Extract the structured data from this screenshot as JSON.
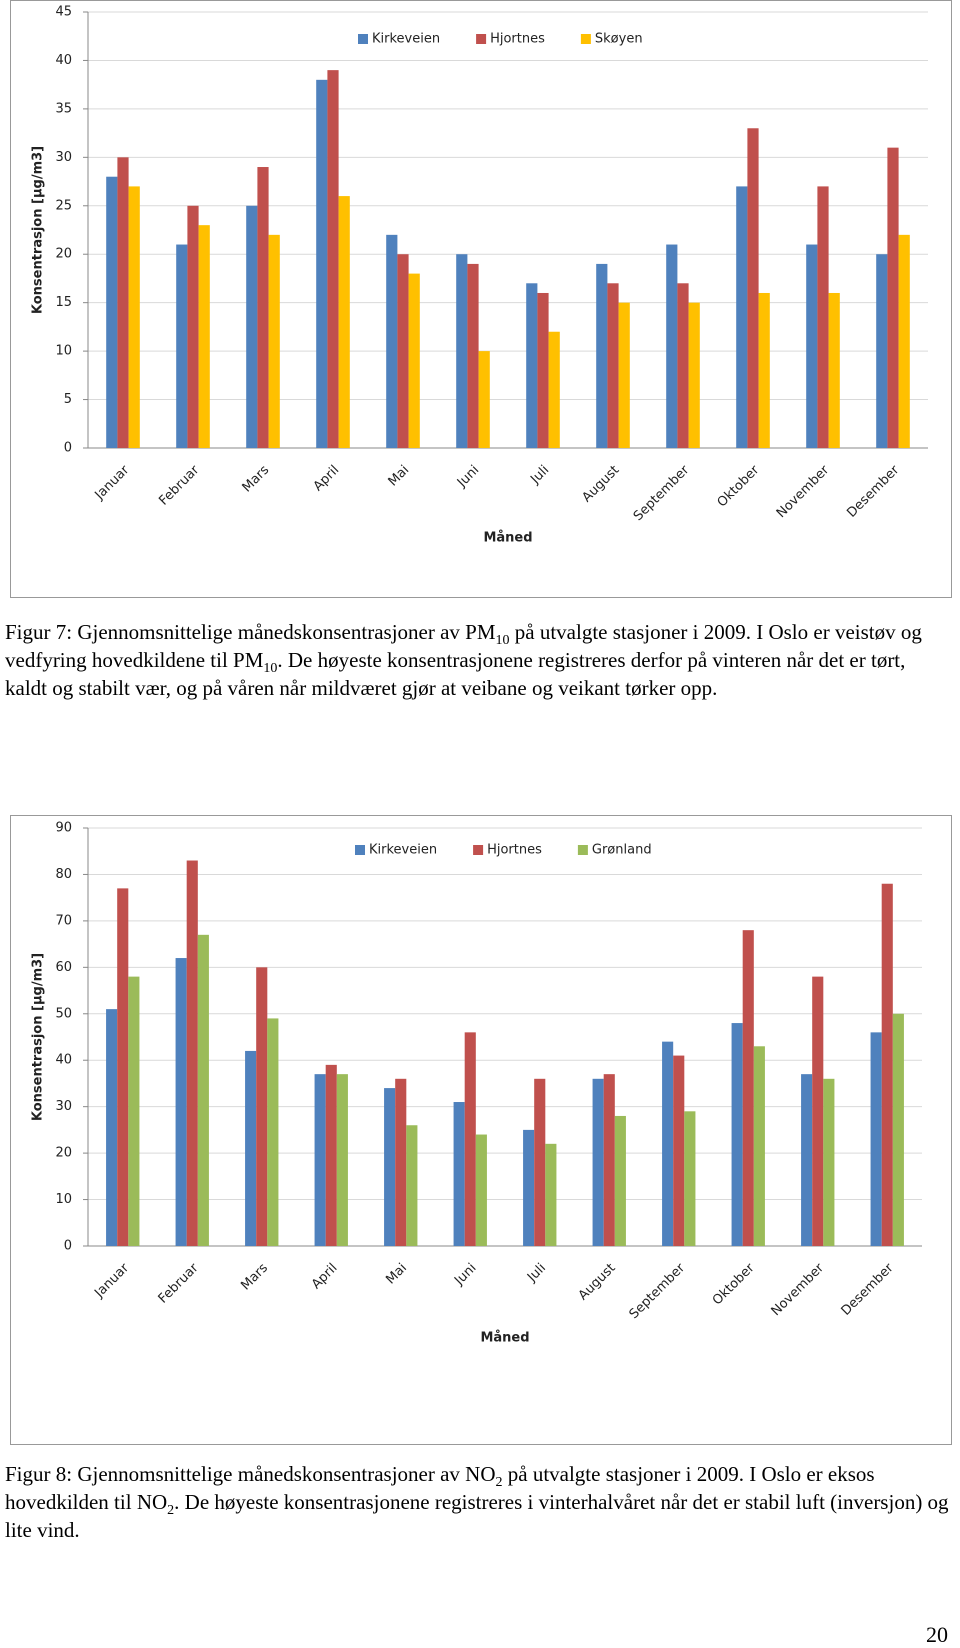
{
  "chart_data": [
    {
      "type": "bar",
      "y_label": "Konsentrasjon [µg/m3]",
      "x_label": "Måned",
      "categories": [
        "Januar",
        "Februar",
        "Mars",
        "April",
        "Mai",
        "Juni",
        "Juli",
        "August",
        "September",
        "Oktober",
        "November",
        "Desember"
      ],
      "series": [
        {
          "name": "Kirkeveien",
          "color": "#4f81bd",
          "values": [
            28,
            21,
            25,
            38,
            22,
            20,
            17,
            19,
            21,
            27,
            21,
            20
          ]
        },
        {
          "name": "Hjortnes",
          "color": "#c0504d",
          "values": [
            30,
            25,
            29,
            39,
            20,
            19,
            16,
            17,
            17,
            33,
            27,
            31
          ]
        },
        {
          "name": "Skøyen",
          "color": "#ffc000",
          "values": [
            27,
            23,
            22,
            26,
            18,
            10,
            12,
            15,
            15,
            16,
            16,
            22
          ]
        }
      ],
      "ylim": [
        0,
        45
      ],
      "yticks": [
        0,
        5,
        10,
        15,
        20,
        25,
        30,
        35,
        40,
        45
      ],
      "grid": true,
      "legend": "top"
    },
    {
      "type": "bar",
      "y_label": "Konsentrasjon [µg/m3]",
      "x_label": "Måned",
      "categories": [
        "Januar",
        "Februar",
        "Mars",
        "April",
        "Mai",
        "Juni",
        "Juli",
        "August",
        "September",
        "Oktober",
        "November",
        "Desember"
      ],
      "series": [
        {
          "name": "Kirkeveien",
          "color": "#4f81bd",
          "values": [
            51,
            62,
            42,
            37,
            34,
            31,
            25,
            36,
            44,
            48,
            37,
            46
          ]
        },
        {
          "name": "Hjortnes",
          "color": "#c0504d",
          "values": [
            77,
            83,
            60,
            39,
            36,
            46,
            36,
            37,
            41,
            68,
            58,
            78
          ]
        },
        {
          "name": "Grønland",
          "color": "#9bbb59",
          "values": [
            58,
            67,
            49,
            37,
            26,
            24,
            22,
            28,
            29,
            43,
            36,
            50
          ]
        }
      ],
      "ylim": [
        0,
        90
      ],
      "yticks": [
        0,
        10,
        20,
        30,
        40,
        50,
        60,
        70,
        80,
        90
      ],
      "grid": true,
      "legend": "top"
    }
  ],
  "captions": [
    [
      {
        "text": "Figur 7: Gjennomsnittelige månedskonsentrasjoner av PM"
      },
      {
        "sub": "10"
      },
      {
        "text": " på utvalgte stasjoner i 2009. I Oslo er veistøv og vedfyring hovedkildene til PM"
      },
      {
        "sub": "10"
      },
      {
        "text": ". De høyeste konsentrasjonene registreres derfor på vinteren når det er tørt, kaldt og stabilt vær, og på våren når mildværet gjør at veibane og veikant tørker opp."
      }
    ],
    [
      {
        "text": "Figur 8: Gjennomsnittelige månedskonsentrasjoner av NO"
      },
      {
        "sub": "2"
      },
      {
        "text": " på utvalgte stasjoner i 2009. I Oslo er eksos hovedkilden til NO"
      },
      {
        "sub": "2"
      },
      {
        "text": ". De høyeste konsentrasjonene registreres i vinterhalvåret når det er stabil luft (inversjon) og lite vind."
      }
    ]
  ],
  "page_number": "20"
}
